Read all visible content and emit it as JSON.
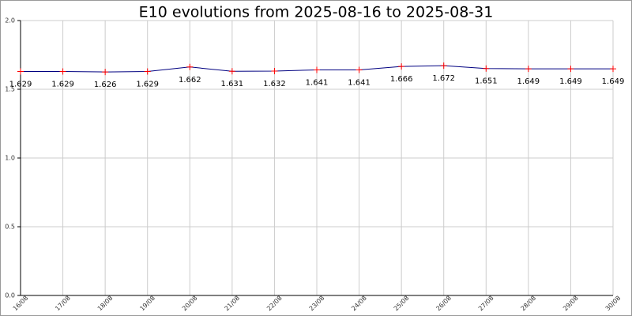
{
  "chart_data": {
    "type": "line",
    "title": "E10 evolutions from 2025-08-16 to 2025-08-31",
    "categories": [
      "16/08",
      "17/08",
      "18/08",
      "19/08",
      "20/08",
      "21/08",
      "22/08",
      "23/08",
      "24/08",
      "25/08",
      "26/08",
      "27/08",
      "28/08",
      "29/08",
      "30/08"
    ],
    "values": [
      1.629,
      1.629,
      1.626,
      1.629,
      1.662,
      1.631,
      1.632,
      1.641,
      1.641,
      1.666,
      1.672,
      1.651,
      1.649,
      1.649,
      1.649
    ],
    "color": "#000080",
    "marker_color": "#ff0000",
    "ylim": [
      0,
      2
    ],
    "yticks": [
      {
        "value": 0,
        "label": "0.0"
      },
      0.5,
      {
        "value": 1,
        "label": "1.0"
      },
      1.5,
      {
        "value": 2,
        "label": "2.0"
      }
    ],
    "grid": true
  }
}
